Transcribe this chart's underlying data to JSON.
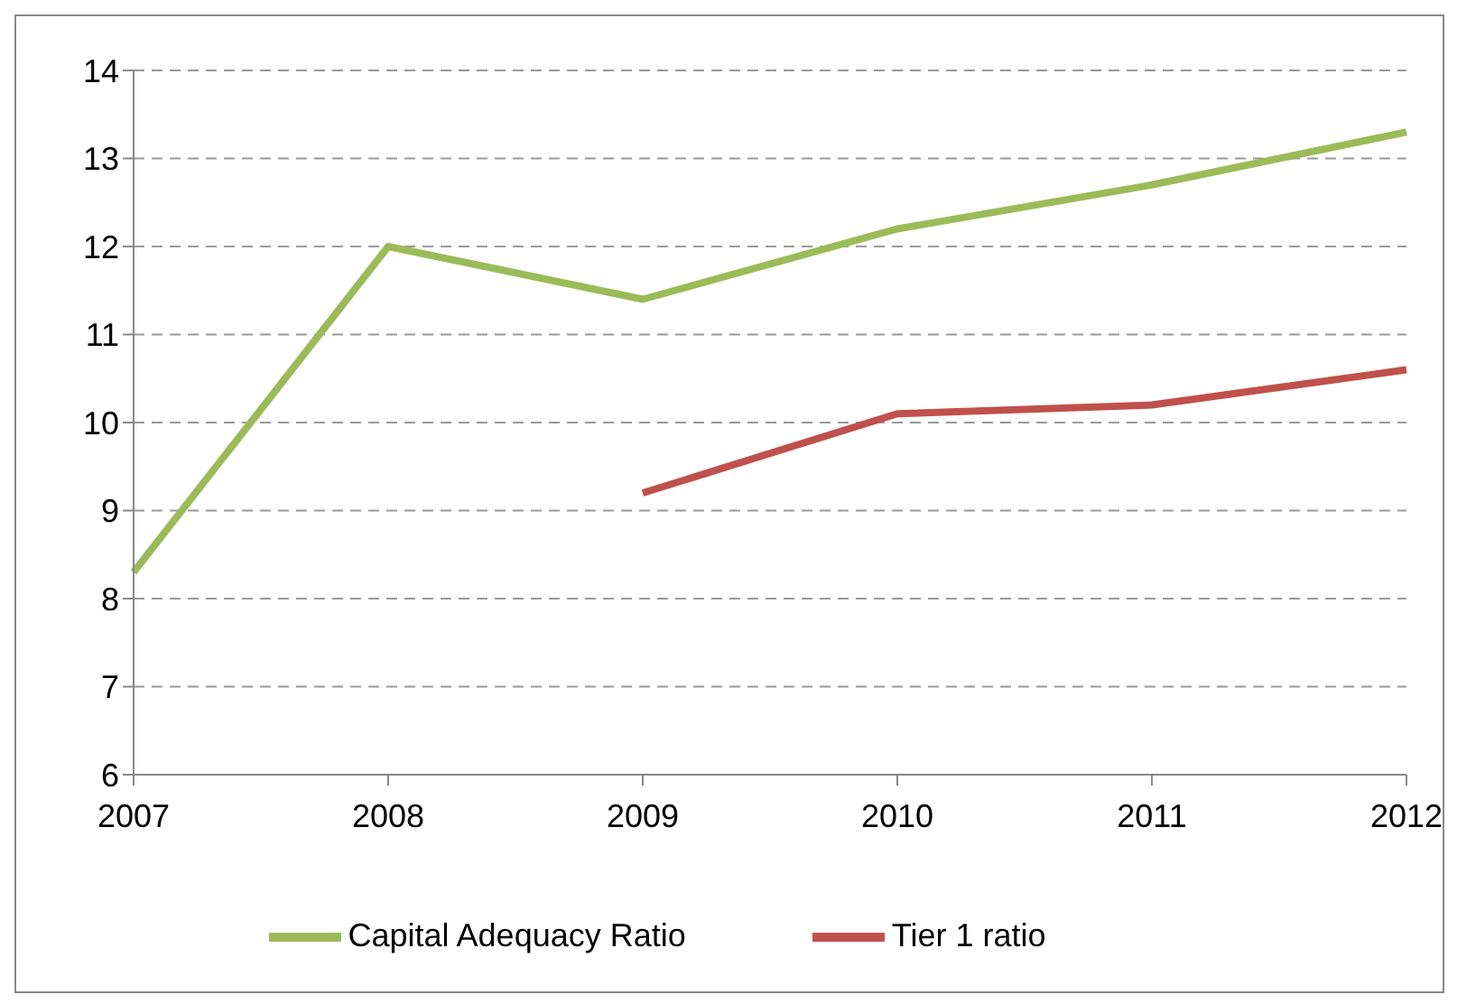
{
  "chart_data": {
    "type": "line",
    "categories": [
      "2007",
      "2008",
      "2009",
      "2010",
      "2011",
      "2012"
    ],
    "series": [
      {
        "name": "Tier 1 ratio",
        "color": "#c0504d",
        "values": [
          null,
          null,
          9.2,
          10.1,
          10.2,
          10.6
        ]
      },
      {
        "name": "Capital Adequacy Ratio",
        "color": "#9bbb59",
        "values": [
          8.3,
          12.0,
          11.4,
          12.2,
          12.7,
          13.3
        ]
      }
    ],
    "ylim": [
      6,
      14
    ],
    "yticks": [
      6,
      7,
      8,
      9,
      10,
      11,
      12,
      13,
      14
    ],
    "grid": "y",
    "legend": "bottom",
    "marker": "none",
    "line_style": "solid"
  }
}
